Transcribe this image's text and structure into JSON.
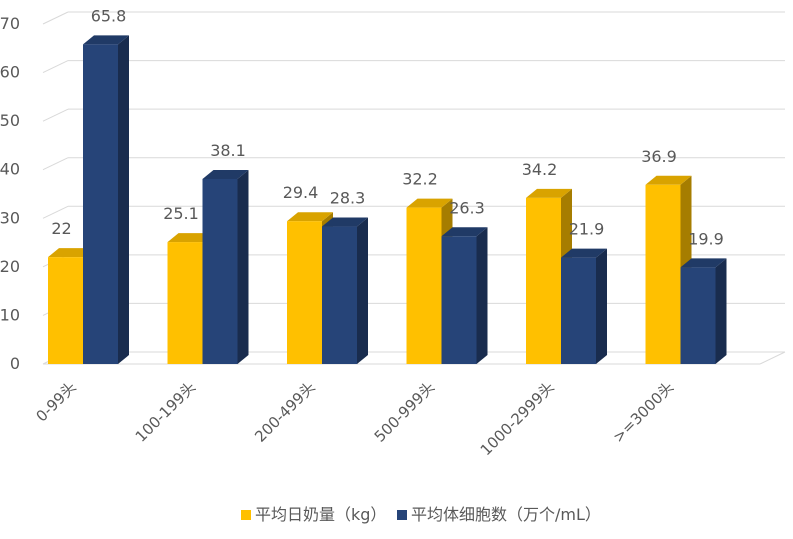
{
  "chart_data": {
    "type": "bar",
    "style": "3d-clustered-column",
    "categories": [
      "0-99头",
      "100-199头",
      "200-499头",
      "500-999头",
      "1000-2999头",
      ">=3000头"
    ],
    "series": [
      {
        "name": "平均日奶量（kg）",
        "color": "#FFC000",
        "values": [
          22,
          25.1,
          29.4,
          32.2,
          34.2,
          36.9
        ]
      },
      {
        "name": "平均体细胞数（万个/mL）",
        "color": "#264478",
        "values": [
          65.8,
          38.1,
          28.3,
          26.3,
          21.9,
          19.9
        ]
      }
    ],
    "y_ticks": [
      "0",
      "10",
      "20",
      "30",
      "40",
      "50",
      "60",
      "70"
    ],
    "ylim": [
      0,
      70
    ],
    "grid": true,
    "legend_position": "bottom"
  }
}
